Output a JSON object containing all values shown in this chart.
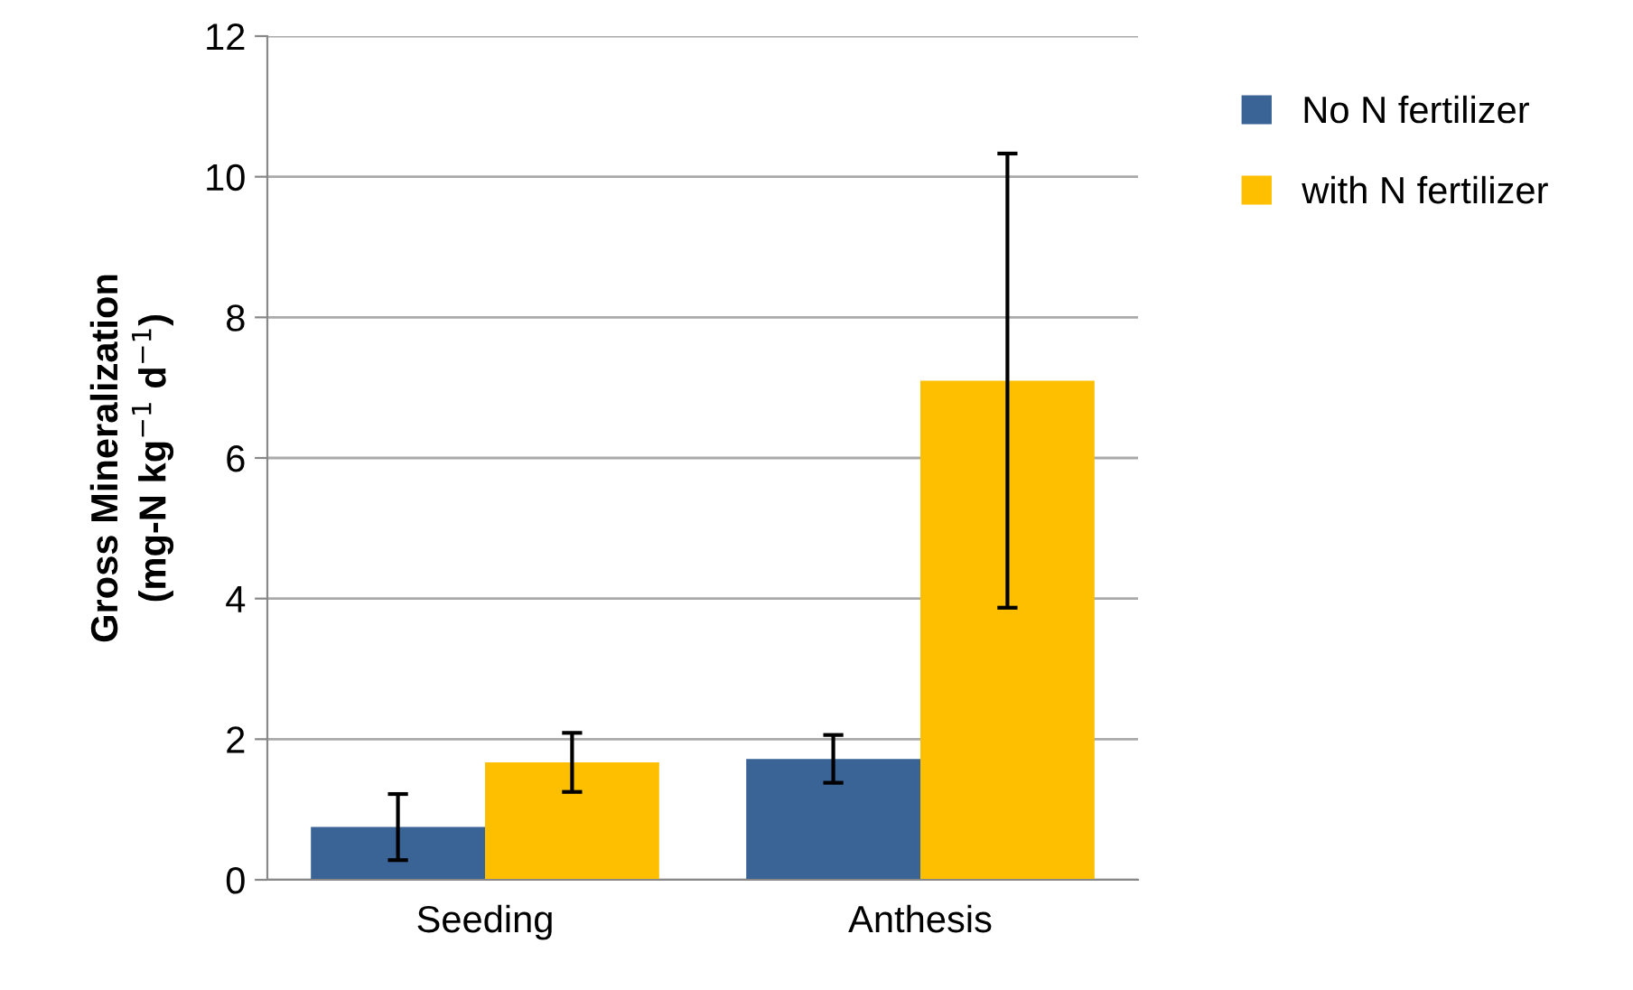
{
  "chart_data": {
    "type": "bar",
    "categories": [
      "Seeding",
      "Anthesis"
    ],
    "ylabel": "Gross Mineralization\n(mg-N kg$^{−1}$ d$^{−1}$)",
    "series": [
      {
        "name": "No N fertilizer",
        "color": "#3a6396",
        "values": [
          0.75,
          1.72
        ],
        "errors": [
          0.47,
          0.34
        ]
      },
      {
        "name": "with N fertilizer",
        "color": "#fdbf00",
        "values": [
          1.67,
          7.1
        ],
        "errors": [
          0.42,
          3.23
        ]
      }
    ],
    "ylim": [
      0,
      12
    ],
    "yticks": [
      0,
      2,
      4,
      6,
      8,
      10,
      12
    ],
    "grid": "y",
    "legend": "top right"
  }
}
